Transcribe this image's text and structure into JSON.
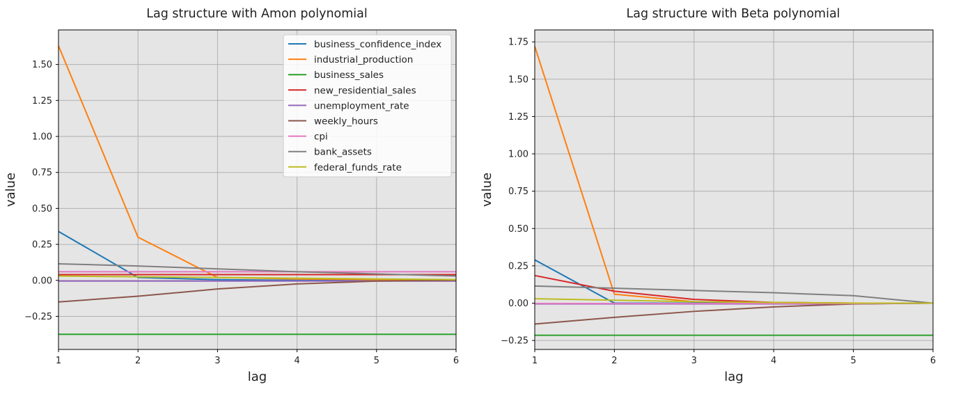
{
  "figure": {
    "colors": {
      "plot_background": "#e5e5e5",
      "grid": "#b0b0b0",
      "series": {
        "business_confidence_index": "#1f77b4",
        "industrial_production": "#ff7f0e",
        "business_sales": "#2ca02c",
        "new_residential_sales": "#d62728",
        "unemployment_rate": "#9467bd",
        "weekly_hours": "#8c564b",
        "cpi": "#e377c2",
        "bank_assets": "#7f7f7f",
        "federal_funds_rate": "#bcbd22"
      }
    }
  },
  "chart_data": [
    {
      "type": "line",
      "title": "Lag structure with Amon polynomial",
      "xlabel": "lag",
      "ylabel": "value",
      "x": [
        1,
        2,
        3,
        4,
        5,
        6
      ],
      "xlim": [
        1,
        6
      ],
      "ylim": [
        -0.48,
        1.74
      ],
      "xticks": [
        "1",
        "2",
        "3",
        "4",
        "5",
        "6"
      ],
      "yticks": [
        -0.25,
        0.0,
        0.25,
        0.5,
        0.75,
        1.0,
        1.25,
        1.5
      ],
      "ytick_labels": [
        "−0.25",
        "0.00",
        "0.25",
        "0.50",
        "0.75",
        "1.00",
        "1.25",
        "1.50"
      ],
      "grid": true,
      "legend": "top-right",
      "series": [
        {
          "name": "business_confidence_index",
          "values": [
            0.34,
            0.02,
            0.005,
            0.0,
            0.0,
            0.0
          ]
        },
        {
          "name": "industrial_production",
          "values": [
            1.63,
            0.3,
            0.02,
            0.01,
            0.005,
            0.0
          ]
        },
        {
          "name": "business_sales",
          "values": [
            -0.375,
            -0.375,
            -0.375,
            -0.375,
            -0.375,
            -0.375
          ]
        },
        {
          "name": "new_residential_sales",
          "values": [
            0.04,
            0.04,
            0.04,
            0.04,
            0.04,
            0.04
          ]
        },
        {
          "name": "unemployment_rate",
          "values": [
            -0.005,
            -0.005,
            -0.005,
            -0.005,
            -0.005,
            -0.005
          ]
        },
        {
          "name": "weekly_hours",
          "values": [
            -0.15,
            -0.11,
            -0.06,
            -0.025,
            -0.005,
            0.0
          ]
        },
        {
          "name": "cpi",
          "values": [
            0.06,
            0.06,
            0.06,
            0.06,
            0.06,
            0.06
          ]
        },
        {
          "name": "bank_assets",
          "values": [
            0.115,
            0.1,
            0.08,
            0.06,
            0.045,
            0.03
          ]
        },
        {
          "name": "federal_funds_rate",
          "values": [
            0.03,
            0.025,
            0.02,
            0.015,
            0.01,
            0.005
          ]
        }
      ]
    },
    {
      "type": "line",
      "title": "Lag structure with Beta polynomial",
      "xlabel": "lag",
      "ylabel": "value",
      "x": [
        1,
        2,
        3,
        4,
        5,
        6
      ],
      "xlim": [
        1,
        6
      ],
      "ylim": [
        -0.31,
        1.83
      ],
      "xticks": [
        "1",
        "2",
        "3",
        "4",
        "5",
        "6"
      ],
      "yticks": [
        -0.25,
        0.0,
        0.25,
        0.5,
        0.75,
        1.0,
        1.25,
        1.5,
        1.75
      ],
      "ytick_labels": [
        "−0.25",
        "0.00",
        "0.25",
        "0.50",
        "0.75",
        "1.00",
        "1.25",
        "1.50",
        "1.75"
      ],
      "grid": true,
      "series": [
        {
          "name": "business_confidence_index",
          "values": [
            0.29,
            0.0,
            0.0,
            0.0,
            0.0,
            0.0
          ]
        },
        {
          "name": "industrial_production",
          "values": [
            1.72,
            0.06,
            0.01,
            0.005,
            0.0,
            0.0
          ]
        },
        {
          "name": "business_sales",
          "values": [
            -0.215,
            -0.215,
            -0.215,
            -0.215,
            -0.215,
            -0.215
          ]
        },
        {
          "name": "new_residential_sales",
          "values": [
            0.185,
            0.08,
            0.025,
            0.005,
            0.0,
            0.0
          ]
        },
        {
          "name": "unemployment_rate",
          "values": [
            -0.005,
            -0.005,
            -0.005,
            -0.005,
            -0.005,
            0.0
          ]
        },
        {
          "name": "weekly_hours",
          "values": [
            -0.14,
            -0.095,
            -0.055,
            -0.025,
            -0.005,
            0.0
          ]
        },
        {
          "name": "cpi",
          "values": [
            -0.003,
            -0.003,
            -0.003,
            -0.003,
            -0.003,
            0.0
          ]
        },
        {
          "name": "bank_assets",
          "values": [
            0.115,
            0.1,
            0.085,
            0.07,
            0.05,
            0.0
          ]
        },
        {
          "name": "federal_funds_rate",
          "values": [
            0.03,
            0.02,
            0.01,
            0.005,
            0.0,
            0.0
          ]
        }
      ]
    }
  ]
}
